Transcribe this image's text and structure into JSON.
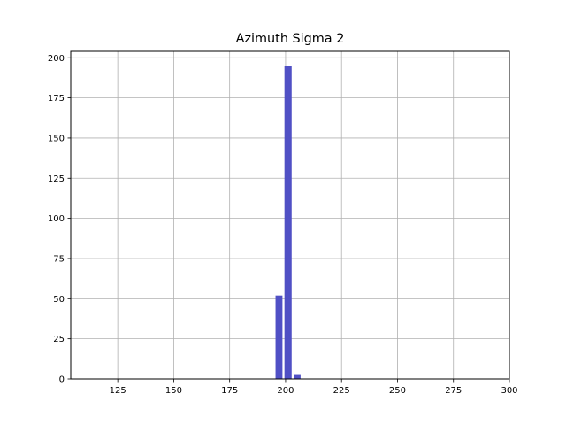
{
  "chart_data": {
    "type": "bar",
    "title": "Azimuth Sigma 2",
    "xlabel": "",
    "ylabel": "",
    "xlim": [
      104,
      300
    ],
    "ylim": [
      0,
      204
    ],
    "x_ticks": [
      125,
      150,
      175,
      200,
      225,
      250,
      275,
      300
    ],
    "y_ticks": [
      0,
      25,
      50,
      75,
      100,
      125,
      150,
      175,
      200
    ],
    "grid": true,
    "bar_color": "#4c4cc4",
    "bins": [
      {
        "start": 195.5,
        "end": 198.6,
        "value": 52
      },
      {
        "start": 199.5,
        "end": 202.7,
        "value": 195
      },
      {
        "start": 203.6,
        "end": 206.7,
        "value": 3
      }
    ]
  }
}
